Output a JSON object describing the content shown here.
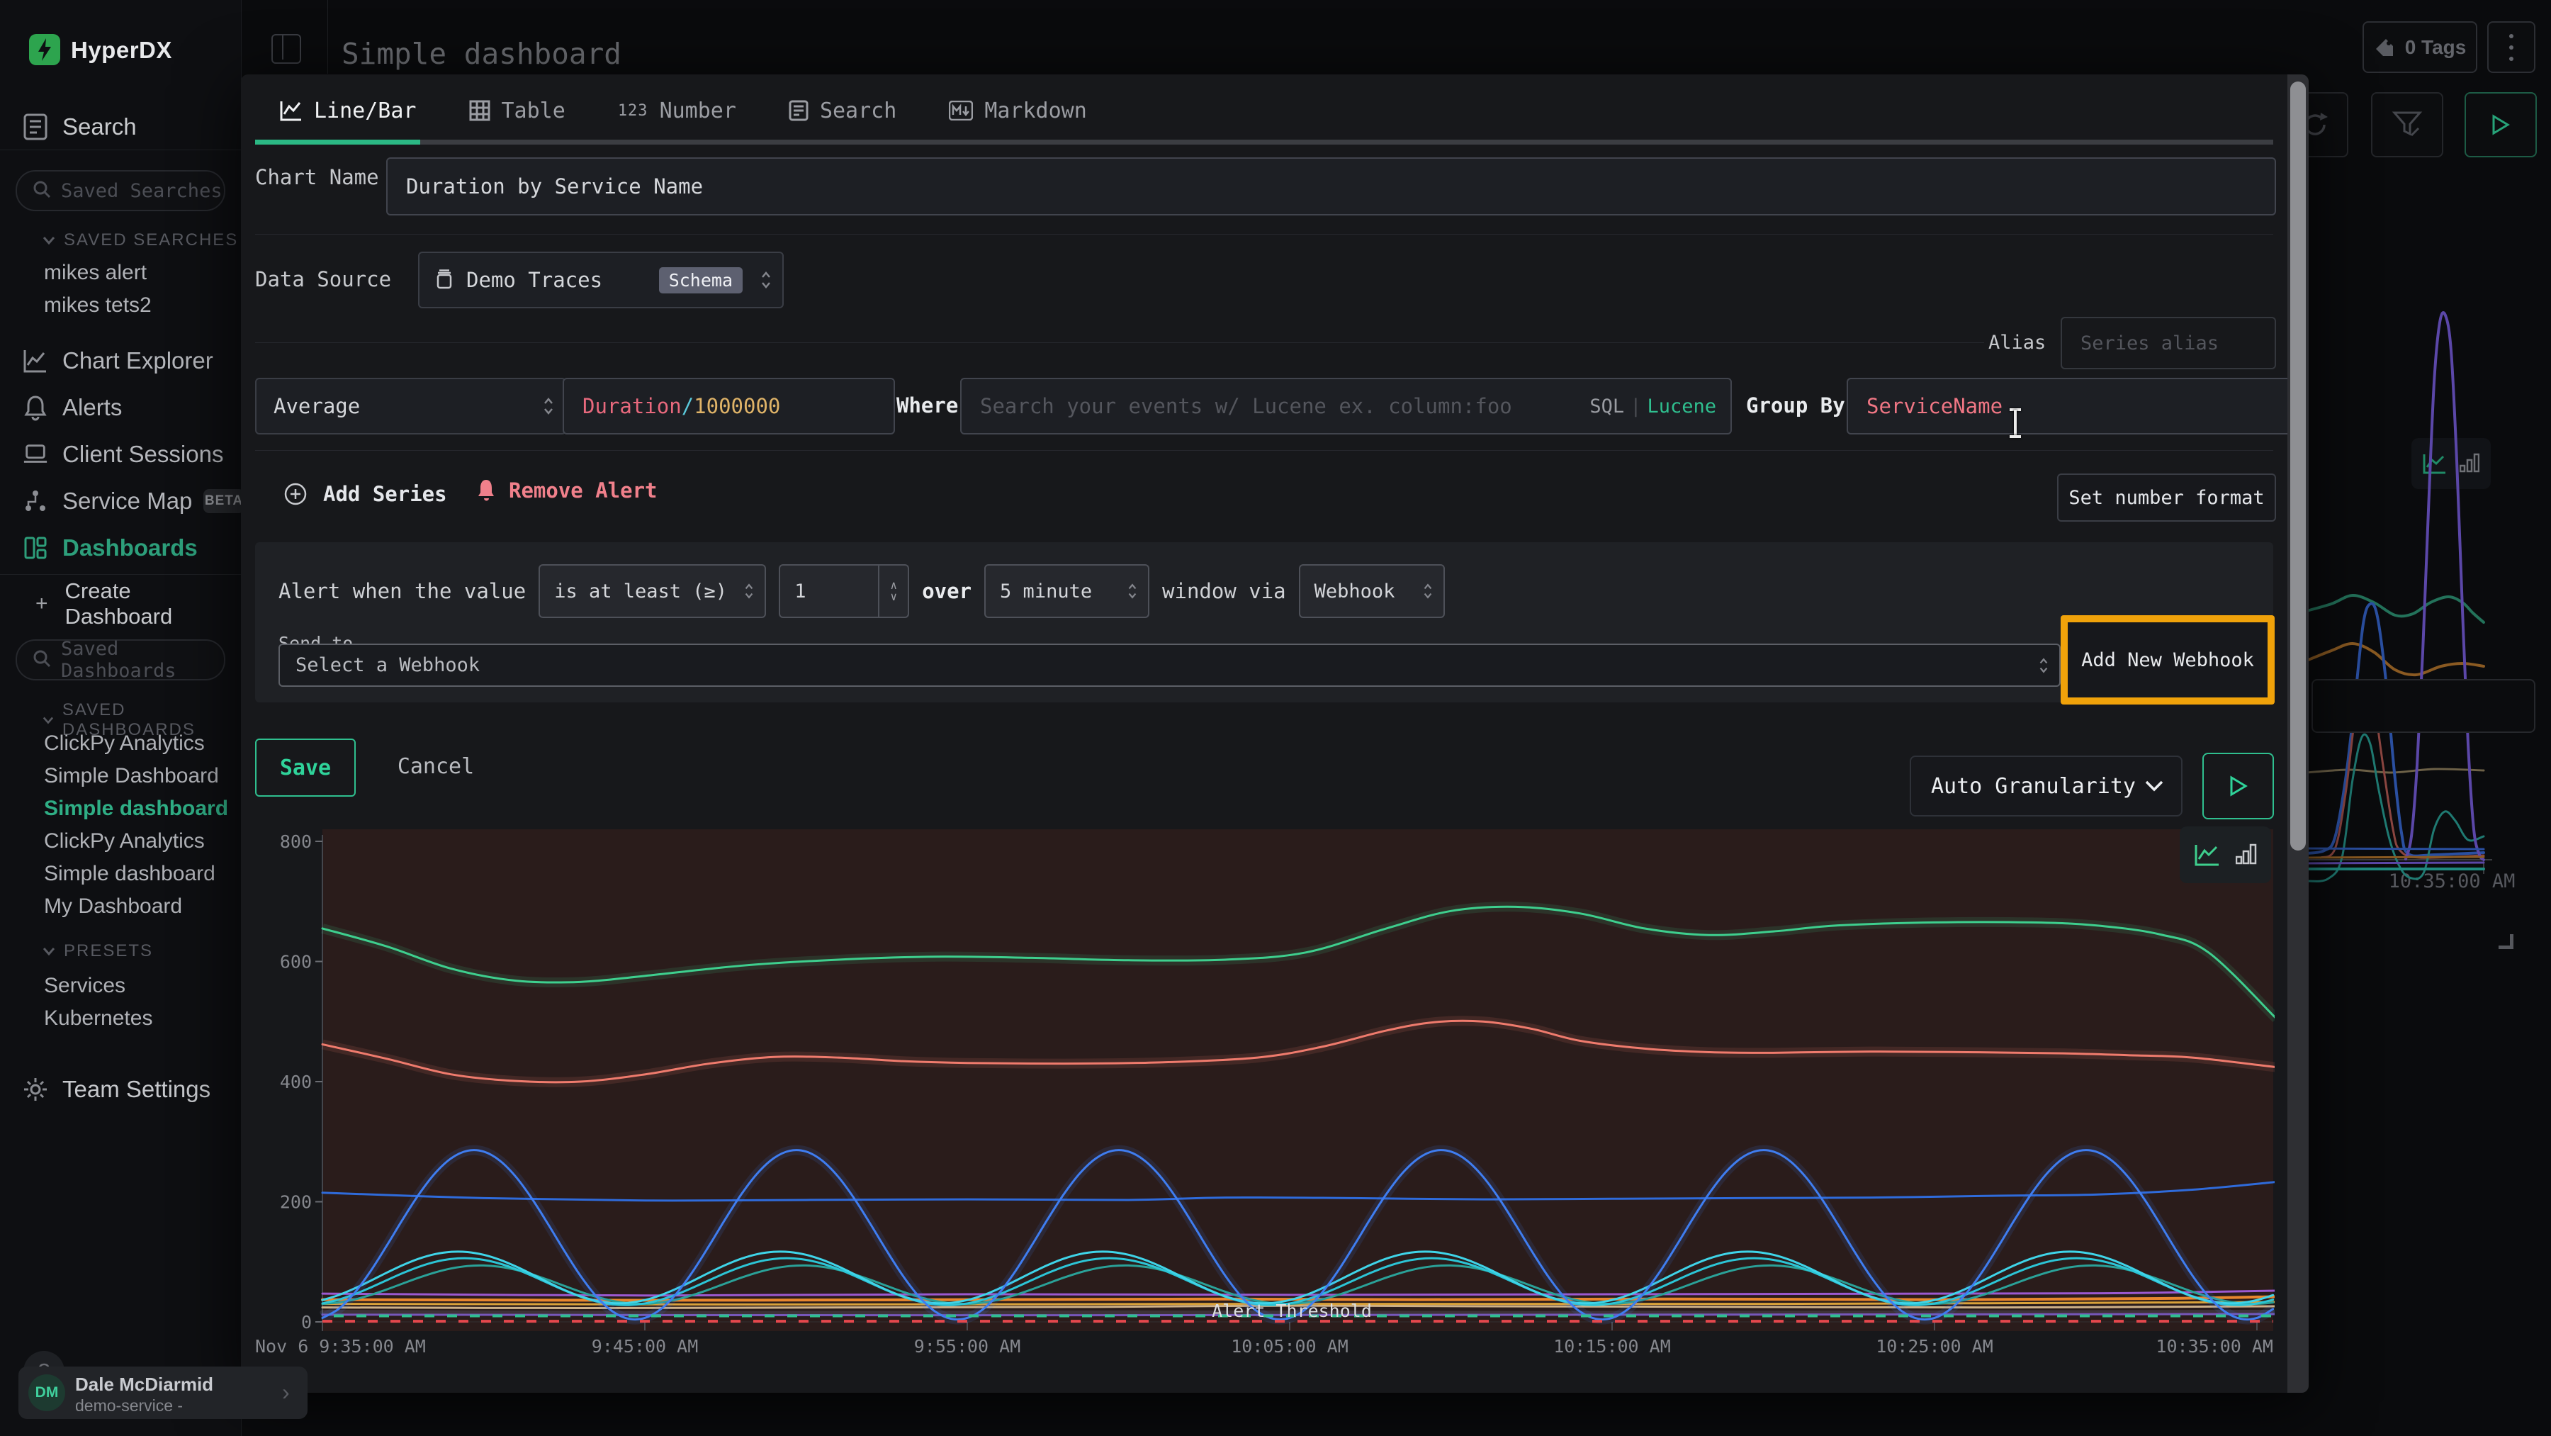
{
  "header": {
    "brand": "HyperDX",
    "page_title": "Simple dashboard",
    "tags_button": "0 Tags"
  },
  "sidebar": {
    "search_label": "Search",
    "saved_searches_placeholder": "Saved Searches",
    "saved_searches_header": "SAVED SEARCHES",
    "saved_searches": [
      "mikes alert",
      "mikes tets2"
    ],
    "nav": [
      {
        "label": "Chart Explorer"
      },
      {
        "label": "Alerts"
      },
      {
        "label": "Client Sessions"
      },
      {
        "label": "Service Map",
        "badge": "BETA"
      },
      {
        "label": "Dashboards",
        "active": true
      }
    ],
    "create_dashboard": "Create Dashboard",
    "saved_dashboards_placeholder": "Saved Dashboards",
    "saved_dashboards_header": "SAVED DASHBOARDS",
    "saved_dashboards": [
      {
        "label": "ClickPy Analytics"
      },
      {
        "label": "Simple Dashboard"
      },
      {
        "label": "Simple dashboard",
        "active": true
      },
      {
        "label": "ClickPy Analytics"
      },
      {
        "label": "Simple dashboard"
      },
      {
        "label": "My Dashboard"
      }
    ],
    "presets_header": "PRESETS",
    "presets": [
      "Services",
      "Kubernetes"
    ],
    "team_settings": "Team Settings",
    "help": "?",
    "user": {
      "initials": "DM",
      "name": "Dale McDiarmid",
      "subtitle": "demo-service -"
    }
  },
  "modal": {
    "tabs": [
      {
        "label": "Line/Bar",
        "active": true
      },
      {
        "label": "Table"
      },
      {
        "label": "Number"
      },
      {
        "label": "Search"
      },
      {
        "label": "Markdown"
      }
    ],
    "chart_name_label": "Chart Name",
    "chart_name_value": "Duration by Service Name",
    "data_source_label": "Data Source",
    "data_source_value": "Demo Traces",
    "data_source_badge": "Schema",
    "alias_label": "Alias",
    "alias_placeholder": "Series alias",
    "aggregation_value": "Average",
    "field_tokens": {
      "a": "Duration",
      "b": "/",
      "c": "1000000"
    },
    "where_label": "Where",
    "where_placeholder": "Search your events w/ Lucene ex. column:foo",
    "lang_sql": "SQL",
    "lang_sep": "|",
    "lang_lucene": "Lucene",
    "group_by_label": "Group By",
    "group_by_value": "ServiceName",
    "add_series": "Add Series",
    "remove_alert": "Remove Alert",
    "set_number_format": "Set number format",
    "alert": {
      "prefix": "Alert when the value",
      "op_value": "is at least (≥)",
      "threshold_value": "1",
      "over": "over",
      "window_value": "5 minute",
      "via": "window via",
      "channel_value": "Webhook",
      "send_to": "Send to",
      "webhook_placeholder": "Select a Webhook",
      "add_webhook": "Add New Webhook"
    },
    "save": "Save",
    "cancel": "Cancel",
    "granularity": "Auto Granularity"
  },
  "chart_data": {
    "type": "line",
    "title": "Duration by Service Name",
    "ylabel": "",
    "xlabel": "",
    "ylim": [
      0,
      800
    ],
    "yticks": [
      0,
      200,
      400,
      600,
      800
    ],
    "x_unit": "minutes since 9:35 AM, Nov 6",
    "xticks": [
      {
        "t": 0,
        "label": "Nov 6 9:35:00 AM",
        "anchor": "start"
      },
      {
        "t": 10,
        "label": "9:45:00 AM",
        "anchor": "middle"
      },
      {
        "t": 20,
        "label": "9:55:00 AM",
        "anchor": "middle"
      },
      {
        "t": 30,
        "label": "10:05:00 AM",
        "anchor": "middle"
      },
      {
        "t": 40,
        "label": "10:15:00 AM",
        "anchor": "middle"
      },
      {
        "t": 50,
        "label": "10:25:00 AM",
        "anchor": "middle"
      },
      {
        "t": 60,
        "label": "10:35:00 AM",
        "anchor": "end"
      }
    ],
    "threshold": {
      "value": 1,
      "label": "Alert Threshold",
      "color": "#e5484d",
      "color2": "#2fbf8f"
    },
    "grid": false,
    "legend": "none",
    "plot_bg": "#2a1c1b",
    "series": [
      {
        "name": "baseline-glow",
        "color": "#9aa0c0",
        "width": 7,
        "opacity": 0.18,
        "points": [
          [
            0,
            16
          ],
          [
            12,
            14
          ],
          [
            25,
            15
          ],
          [
            38,
            14
          ],
          [
            50,
            15
          ],
          [
            60.6,
            16
          ]
        ]
      },
      {
        "name": "violet-low",
        "color": "#7d5bc9",
        "width": 3,
        "opacity": 0.9,
        "points": [
          [
            0,
            12
          ],
          [
            20,
            11
          ],
          [
            40,
            12
          ],
          [
            60.6,
            13
          ]
        ]
      },
      {
        "name": "wheat",
        "color": "#cdb089",
        "width": 3,
        "points": [
          [
            0,
            24
          ],
          [
            8,
            23
          ],
          [
            16,
            24
          ],
          [
            24,
            25
          ],
          [
            30,
            27
          ],
          [
            36,
            26
          ],
          [
            44,
            25
          ],
          [
            52,
            24
          ],
          [
            60.6,
            26
          ]
        ]
      },
      {
        "name": "amber",
        "color": "#d9a13a",
        "width": 3,
        "points": [
          [
            0,
            30
          ],
          [
            15,
            29
          ],
          [
            30,
            30
          ],
          [
            45,
            30
          ],
          [
            60.6,
            33
          ]
        ]
      },
      {
        "name": "orange",
        "color": "#e8862e",
        "width": 4,
        "points": [
          [
            0,
            37
          ],
          [
            10,
            36
          ],
          [
            20,
            37
          ],
          [
            28,
            38
          ],
          [
            34,
            37
          ],
          [
            42,
            38
          ],
          [
            50,
            37
          ],
          [
            57,
            39
          ],
          [
            60.6,
            42
          ]
        ]
      },
      {
        "name": "purple",
        "color": "#9b59d0",
        "width": 3,
        "points": [
          [
            0,
            47
          ],
          [
            10,
            44
          ],
          [
            20,
            46
          ],
          [
            30,
            45
          ],
          [
            40,
            46
          ],
          [
            50,
            47
          ],
          [
            56,
            48
          ],
          [
            60.6,
            52
          ]
        ]
      },
      {
        "name": "teal-wave",
        "color": "#2aa198",
        "width": 3,
        "sine": {
          "base": 62,
          "amp": 32,
          "period": 10,
          "peakAt": 4.9
        }
      },
      {
        "name": "cyan-wave-2",
        "color": "#2cc5d6",
        "width": 3,
        "sine": {
          "base": 67,
          "amp": 39,
          "period": 10,
          "peakAt": 4.4
        }
      },
      {
        "name": "cyan-wave-1",
        "color": "#3fd4e8",
        "width": 3,
        "sine": {
          "base": 74,
          "amp": 43,
          "period": 10,
          "peakAt": 4.2
        }
      },
      {
        "name": "blue-flat",
        "color": "#2f6bdb",
        "width": 3,
        "points": [
          [
            0,
            215
          ],
          [
            5,
            206
          ],
          [
            10,
            202
          ],
          [
            15,
            203
          ],
          [
            20,
            204
          ],
          [
            25,
            203
          ],
          [
            28,
            207
          ],
          [
            32,
            206
          ],
          [
            36,
            204
          ],
          [
            40,
            205
          ],
          [
            44,
            206
          ],
          [
            48,
            207
          ],
          [
            52,
            210
          ],
          [
            55,
            212
          ],
          [
            58,
            220
          ],
          [
            60.6,
            233
          ]
        ]
      },
      {
        "name": "blue-wave",
        "color": "#3f7df0",
        "width": 3,
        "glow": true,
        "sine": {
          "base": 145,
          "amp": 141,
          "period": 10,
          "peakAt": 4.7
        }
      },
      {
        "name": "red",
        "color": "#ef7b6d",
        "width": 3,
        "glow": true,
        "points": [
          [
            0,
            462
          ],
          [
            2,
            438
          ],
          [
            4,
            412
          ],
          [
            6,
            401
          ],
          [
            8,
            400
          ],
          [
            10,
            412
          ],
          [
            12,
            430
          ],
          [
            14,
            441
          ],
          [
            16,
            440
          ],
          [
            18,
            434
          ],
          [
            20,
            431
          ],
          [
            23,
            430
          ],
          [
            26,
            432
          ],
          [
            29,
            440
          ],
          [
            31,
            458
          ],
          [
            33,
            485
          ],
          [
            34.5,
            499
          ],
          [
            36,
            500
          ],
          [
            37.5,
            488
          ],
          [
            39,
            468
          ],
          [
            41,
            455
          ],
          [
            43,
            449
          ],
          [
            45,
            448
          ],
          [
            48,
            450
          ],
          [
            51,
            449
          ],
          [
            54,
            447
          ],
          [
            56,
            444
          ],
          [
            58,
            440
          ],
          [
            60.6,
            424
          ]
        ]
      },
      {
        "name": "green",
        "color": "#3ecf8e",
        "width": 3,
        "glow": true,
        "points": [
          [
            0,
            655
          ],
          [
            2,
            625
          ],
          [
            4,
            588
          ],
          [
            6,
            568
          ],
          [
            8,
            566
          ],
          [
            10,
            576
          ],
          [
            13,
            593
          ],
          [
            16,
            603
          ],
          [
            19,
            608
          ],
          [
            22,
            606
          ],
          [
            25,
            602
          ],
          [
            28,
            603
          ],
          [
            30.5,
            615
          ],
          [
            33,
            655
          ],
          [
            35,
            684
          ],
          [
            37,
            691
          ],
          [
            39,
            680
          ],
          [
            41,
            655
          ],
          [
            43,
            644
          ],
          [
            45,
            650
          ],
          [
            47,
            660
          ],
          [
            50,
            665
          ],
          [
            53,
            665
          ],
          [
            55,
            660
          ],
          [
            57,
            645
          ],
          [
            58.5,
            615
          ],
          [
            60.6,
            505
          ]
        ]
      }
    ]
  },
  "preview_chart": {
    "type": "line",
    "note": "dimmed dashboard chart behind modal",
    "time_label": "10:35:00 AM",
    "series": [
      {
        "color": "#23725a",
        "width": 4,
        "px": true,
        "points": [
          [
            0,
            462
          ],
          [
            35,
            452
          ],
          [
            65,
            440
          ],
          [
            95,
            450
          ],
          [
            125,
            468
          ],
          [
            150,
            466
          ],
          [
            175,
            450
          ],
          [
            200,
            442
          ],
          [
            220,
            450
          ],
          [
            235,
            465
          ],
          [
            250,
            478
          ]
        ]
      },
      {
        "color": "#8a5a22",
        "width": 4,
        "px": true,
        "points": [
          [
            0,
            532
          ],
          [
            35,
            518
          ],
          [
            65,
            508
          ],
          [
            95,
            520
          ],
          [
            125,
            545
          ],
          [
            155,
            552
          ],
          [
            190,
            540
          ],
          [
            220,
            536
          ],
          [
            250,
            540
          ]
        ]
      },
      {
        "color": "#6e6248",
        "width": 3,
        "px": true,
        "points": [
          [
            0,
            690
          ],
          [
            60,
            686
          ],
          [
            120,
            690
          ],
          [
            180,
            685
          ],
          [
            250,
            687
          ]
        ]
      },
      {
        "color": "#2a4fa0",
        "width": 4,
        "px": true,
        "points": [
          [
            0,
            804
          ],
          [
            25,
            800
          ],
          [
            40,
            782
          ],
          [
            55,
            700
          ],
          [
            68,
            590
          ],
          [
            80,
            480
          ],
          [
            90,
            452
          ],
          [
            100,
            470
          ],
          [
            112,
            560
          ],
          [
            124,
            690
          ],
          [
            134,
            775
          ],
          [
            144,
            805
          ],
          [
            180,
            806
          ],
          [
            250,
            803
          ]
        ]
      },
      {
        "color": "#8a4540",
        "width": 3,
        "px": true,
        "points": [
          [
            20,
            810
          ],
          [
            40,
            798
          ],
          [
            55,
            720
          ],
          [
            70,
            600
          ],
          [
            82,
            563
          ],
          [
            94,
            585
          ],
          [
            108,
            680
          ],
          [
            122,
            770
          ],
          [
            132,
            800
          ],
          [
            160,
            810
          ],
          [
            250,
            807
          ]
        ]
      },
      {
        "color": "#1f7a72",
        "width": 3,
        "px": true,
        "points": [
          [
            0,
            843
          ],
          [
            30,
            840
          ],
          [
            50,
            810
          ],
          [
            65,
            700
          ],
          [
            78,
            640
          ],
          [
            90,
            650
          ],
          [
            102,
            715
          ],
          [
            116,
            780
          ],
          [
            130,
            820
          ],
          [
            145,
            838
          ],
          [
            165,
            832
          ],
          [
            180,
            770
          ],
          [
            195,
            745
          ],
          [
            210,
            758
          ],
          [
            228,
            785
          ],
          [
            250,
            780
          ]
        ]
      },
      {
        "color": "#5b47a8",
        "width": 4,
        "px": true,
        "points": [
          [
            140,
            812
          ],
          [
            148,
            780
          ],
          [
            156,
            680
          ],
          [
            164,
            520
          ],
          [
            172,
            320
          ],
          [
            180,
            140
          ],
          [
            188,
            55
          ],
          [
            196,
            45
          ],
          [
            204,
            95
          ],
          [
            212,
            250
          ],
          [
            220,
            460
          ],
          [
            228,
            650
          ],
          [
            236,
            770
          ],
          [
            244,
            806
          ],
          [
            250,
            813
          ]
        ]
      },
      {
        "color": "#2a4fa0",
        "width": 3,
        "px": true,
        "points": [
          [
            0,
            797
          ],
          [
            250,
            798
          ]
        ]
      },
      {
        "color": "#8a5a22",
        "width": 3,
        "px": true,
        "points": [
          [
            0,
            810
          ],
          [
            250,
            809
          ]
        ]
      },
      {
        "color": "#5b47a8",
        "width": 3,
        "px": true,
        "points": [
          [
            0,
            818
          ],
          [
            250,
            817
          ]
        ]
      },
      {
        "color": "#1f8a80",
        "width": 4,
        "px": true,
        "points": [
          [
            0,
            826
          ],
          [
            250,
            826
          ]
        ]
      }
    ]
  }
}
